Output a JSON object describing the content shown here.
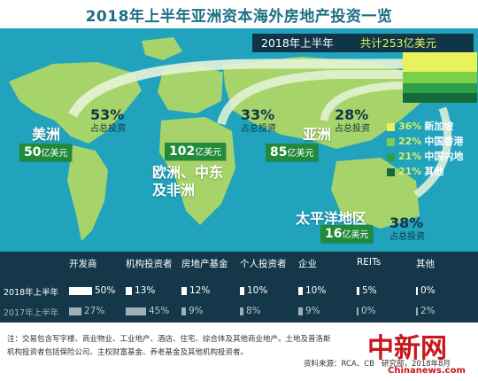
{
  "title": "2018年上半年亚洲资本海外房地产投资一览",
  "banner": {
    "period": "2018年上半年",
    "total": "共计253亿美元"
  },
  "regions": {
    "americas": {
      "name": "美洲",
      "amount": "50",
      "unit": "亿美元",
      "pct": "53%",
      "pct_label": "占总投资"
    },
    "emea": {
      "name_line1": "欧洲、中东",
      "name_line2": "及非洲",
      "amount": "102",
      "unit": "亿美元",
      "pct": "33%",
      "pct_label": "占总投资"
    },
    "asia": {
      "name": "亚洲",
      "amount": "85",
      "unit": "亿美元",
      "pct": "28%",
      "pct_label": "占总投资"
    },
    "pacific": {
      "name": "太平洋地区",
      "amount": "16",
      "unit": "亿美元",
      "pct": "38%",
      "pct_label": "占总投资"
    }
  },
  "source_legend": [
    {
      "pct": "36%",
      "label": "新加坡",
      "color": "#e8f25a"
    },
    {
      "pct": "22%",
      "label": "中国香港",
      "color": "#7ccf4a"
    },
    {
      "pct": "21%",
      "label": "中国内地",
      "color": "#2e9e47"
    },
    {
      "pct": "21%",
      "label": "其他",
      "color": "#146a3a"
    }
  ],
  "table": {
    "headers": [
      "开发商",
      "机构投资者",
      "房地产基金",
      "个人投资者",
      "企业",
      "REITs",
      "其他"
    ],
    "rows": [
      {
        "label": "2018年上半年",
        "values": [
          "50%",
          "13%",
          "12%",
          "10%",
          "10%",
          "5%",
          "0%"
        ],
        "fractions": [
          0.5,
          0.13,
          0.12,
          0.1,
          0.1,
          0.05,
          0.0
        ],
        "color": "#ffffff"
      },
      {
        "label": "2017年上半年",
        "values": [
          "27%",
          "45%",
          "9%",
          "8%",
          "9%",
          "0%",
          "2%"
        ],
        "fractions": [
          0.27,
          0.45,
          0.09,
          0.08,
          0.09,
          0.0,
          0.02
        ],
        "color": "#9fb0b8"
      }
    ]
  },
  "notes": {
    "line1": "注：交易包含写字楼、商业物业、工业地产、酒店、住宅、综合体及其他商业地产。土地及普洛斯",
    "line2": "机构投资者包括保险公司、主权财富基金、养老基金及其他机构投资者。",
    "source": "资料来源：RCA、CB",
    "source_tail": "研究部，2018年8月"
  },
  "watermark": {
    "text": "中新网",
    "url": "Chinanews.com"
  },
  "chart_data": {
    "type": "table",
    "title": "2018年上半年亚洲资本海外房地产投资一览",
    "total_investment": "253亿美元",
    "regions": [
      {
        "region": "美洲",
        "amount": 50,
        "pct_of_total": 53
      },
      {
        "region": "欧洲、中东及非洲",
        "amount": 102,
        "pct_of_total": 33
      },
      {
        "region": "亚洲",
        "amount": 85,
        "pct_of_total": 28
      },
      {
        "region": "太平洋地区",
        "amount": 16,
        "pct_of_total": 38
      }
    ],
    "source_breakdown": [
      {
        "source": "新加坡",
        "pct": 36
      },
      {
        "source": "中国香港",
        "pct": 22
      },
      {
        "source": "中国内地",
        "pct": 21
      },
      {
        "source": "其他",
        "pct": 21
      }
    ],
    "categories": [
      "开发商",
      "机构投资者",
      "房地产基金",
      "个人投资者",
      "企业",
      "REITs",
      "其他"
    ],
    "series": [
      {
        "name": "2018年上半年",
        "values": [
          50,
          13,
          12,
          10,
          10,
          5,
          0
        ]
      },
      {
        "name": "2017年上半年",
        "values": [
          27,
          45,
          9,
          8,
          9,
          0,
          2
        ]
      }
    ]
  }
}
